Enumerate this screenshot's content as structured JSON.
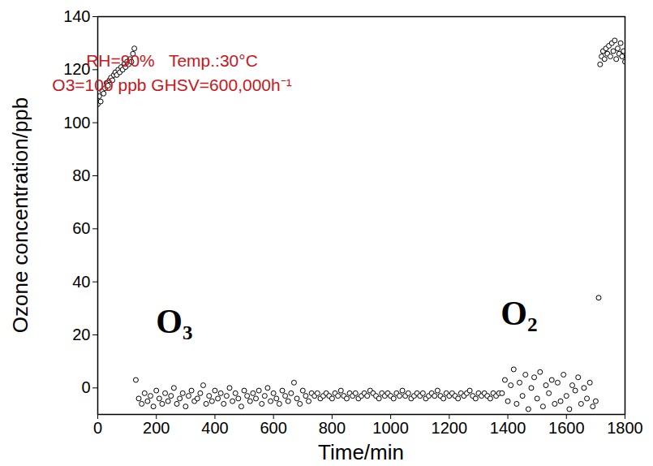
{
  "chart_data": {
    "type": "scatter",
    "x_label": "Time/min",
    "y_label": "Ozone concentration/ppb",
    "annotations": [
      "RH=90%   Temp.:30°C",
      "O3=100 ppb GHSV=600,000h⁻¹",
      "O₃",
      "O₂"
    ],
    "color": "#000000",
    "marker": "open circle",
    "xlim": [
      0,
      1800
    ],
    "ylim": [
      -10,
      140
    ],
    "xticks": [
      0,
      200,
      400,
      600,
      800,
      1000,
      1200,
      1400,
      1600,
      1800
    ],
    "yticks": [
      0,
      20,
      40,
      60,
      80,
      100,
      120,
      140
    ],
    "x": [
      0,
      5,
      10,
      15,
      20,
      25,
      30,
      35,
      40,
      45,
      50,
      55,
      60,
      65,
      70,
      75,
      80,
      85,
      90,
      95,
      100,
      105,
      110,
      115,
      120,
      125,
      130,
      140,
      150,
      160,
      170,
      180,
      190,
      200,
      210,
      220,
      230,
      240,
      250,
      260,
      270,
      280,
      290,
      300,
      310,
      320,
      330,
      340,
      350,
      360,
      370,
      380,
      390,
      400,
      410,
      420,
      430,
      440,
      450,
      460,
      470,
      480,
      490,
      500,
      510,
      520,
      530,
      540,
      550,
      560,
      570,
      580,
      590,
      600,
      610,
      620,
      630,
      640,
      650,
      660,
      670,
      680,
      690,
      700,
      710,
      720,
      730,
      740,
      750,
      760,
      770,
      780,
      790,
      800,
      810,
      820,
      830,
      840,
      850,
      860,
      870,
      880,
      890,
      900,
      910,
      920,
      930,
      940,
      950,
      960,
      970,
      980,
      990,
      1000,
      1010,
      1020,
      1030,
      1040,
      1050,
      1060,
      1070,
      1080,
      1090,
      1100,
      1110,
      1120,
      1130,
      1140,
      1150,
      1160,
      1170,
      1180,
      1190,
      1200,
      1210,
      1220,
      1230,
      1240,
      1250,
      1260,
      1270,
      1280,
      1290,
      1300,
      1310,
      1320,
      1330,
      1340,
      1350,
      1360,
      1370,
      1380,
      1390,
      1400,
      1410,
      1420,
      1430,
      1440,
      1450,
      1460,
      1470,
      1480,
      1490,
      1500,
      1510,
      1520,
      1530,
      1540,
      1550,
      1560,
      1570,
      1580,
      1590,
      1600,
      1610,
      1620,
      1630,
      1640,
      1650,
      1660,
      1670,
      1680,
      1690,
      1700,
      1710,
      1715,
      1720,
      1725,
      1730,
      1735,
      1740,
      1745,
      1750,
      1755,
      1760,
      1765,
      1770,
      1775,
      1780,
      1785,
      1790,
      1795,
      1800
    ],
    "values": [
      107,
      110,
      108,
      112,
      111,
      113,
      115,
      114,
      116,
      117,
      116,
      118,
      119,
      118,
      120,
      119,
      121,
      120,
      122,
      121,
      123,
      122,
      124,
      123,
      126,
      128,
      3,
      -4,
      -6,
      -2,
      -5,
      -3,
      -7,
      -1,
      -4,
      -6,
      -2,
      -5,
      -3,
      0,
      -6,
      -4,
      -2,
      -7,
      -3,
      -1,
      -5,
      -4,
      -2,
      1,
      -6,
      -3,
      -5,
      -1,
      -4,
      -2,
      -6,
      -3,
      0,
      -5,
      -2,
      -4,
      -7,
      -1,
      -3,
      -5,
      -2,
      -4,
      -1,
      -6,
      -3,
      0,
      -5,
      -2,
      -4,
      -6,
      -1,
      -3,
      -5,
      -2,
      2,
      -4,
      -6,
      -1,
      -3,
      -5,
      -2,
      -3,
      -2,
      -4,
      -3,
      -2,
      -3,
      -4,
      -2,
      -3,
      -1,
      -3,
      -4,
      -2,
      -3,
      -2,
      -4,
      -3,
      -2,
      -3,
      -1,
      -2,
      -3,
      -4,
      -2,
      -3,
      -2,
      -3,
      -4,
      -2,
      -3,
      -1,
      -3,
      -2,
      -4,
      -3,
      -2,
      -3,
      -2,
      -4,
      -3,
      -2,
      -3,
      -1,
      -3,
      -4,
      -2,
      -3,
      -2,
      -3,
      -4,
      -2,
      -3,
      -2,
      -1,
      -3,
      -4,
      -2,
      -3,
      -2,
      -3,
      -4,
      -2,
      -3,
      -2,
      -2,
      3,
      -5,
      1,
      7,
      -6,
      2,
      -3,
      5,
      -8,
      0,
      4,
      -4,
      6,
      -7,
      1,
      -2,
      3,
      -6,
      2,
      -5,
      5,
      -3,
      -8,
      1,
      -1,
      4,
      -6,
      0,
      -4,
      2,
      -7,
      -5,
      34,
      122,
      125,
      127,
      124,
      128,
      126,
      129,
      125,
      130,
      127,
      131,
      124,
      128,
      126,
      130,
      125,
      127,
      123
    ]
  }
}
